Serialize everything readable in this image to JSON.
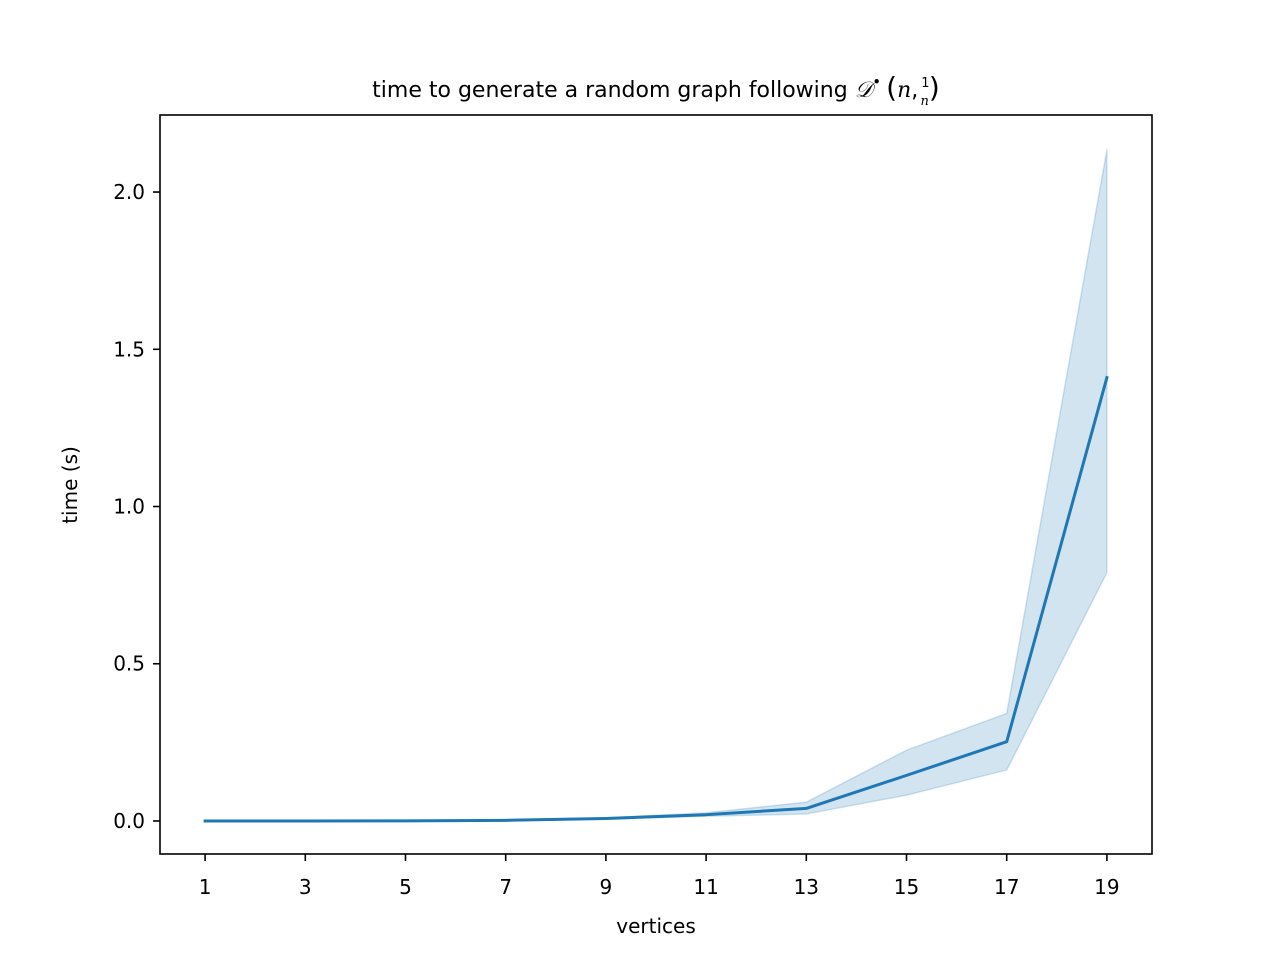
{
  "chart_data": {
    "type": "line",
    "title_text": "time to generate a random graph following ",
    "title_math": {
      "symbol": "𝒟",
      "superscript": "•",
      "open": "(",
      "var": "n",
      "comma": ",",
      "frac_num": "1",
      "frac_den": "n",
      "close": ")"
    },
    "xlabel": "vertices",
    "ylabel": "time (s)",
    "xlim": [
      0.1,
      19.9
    ],
    "ylim": [
      -0.105,
      2.245
    ],
    "xticks": [
      1,
      3,
      5,
      7,
      9,
      11,
      13,
      15,
      17,
      19
    ],
    "xtick_labels": [
      "1",
      "3",
      "5",
      "7",
      "9",
      "11",
      "13",
      "15",
      "17",
      "19"
    ],
    "yticks": [
      0.0,
      0.5,
      1.0,
      1.5,
      2.0
    ],
    "ytick_labels": [
      "0.0",
      "0.5",
      "1.0",
      "1.5",
      "2.0"
    ],
    "grid": false,
    "series": [
      {
        "x": [
          1,
          3,
          5,
          7,
          9,
          11,
          13,
          15,
          17,
          19
        ],
        "y": [
          0.0,
          0.0,
          0.0005,
          0.002,
          0.008,
          0.02,
          0.04,
          0.145,
          0.252,
          1.41
        ],
        "lower": [
          0.0,
          0.0,
          0.0003,
          0.0015,
          0.006,
          0.015,
          0.022,
          0.082,
          0.162,
          0.79
        ],
        "upper": [
          0.0,
          0.0,
          0.0007,
          0.0025,
          0.01,
          0.026,
          0.06,
          0.225,
          0.342,
          2.135
        ],
        "color": "#1f77b4",
        "band_color": "#1f77b4"
      }
    ]
  }
}
